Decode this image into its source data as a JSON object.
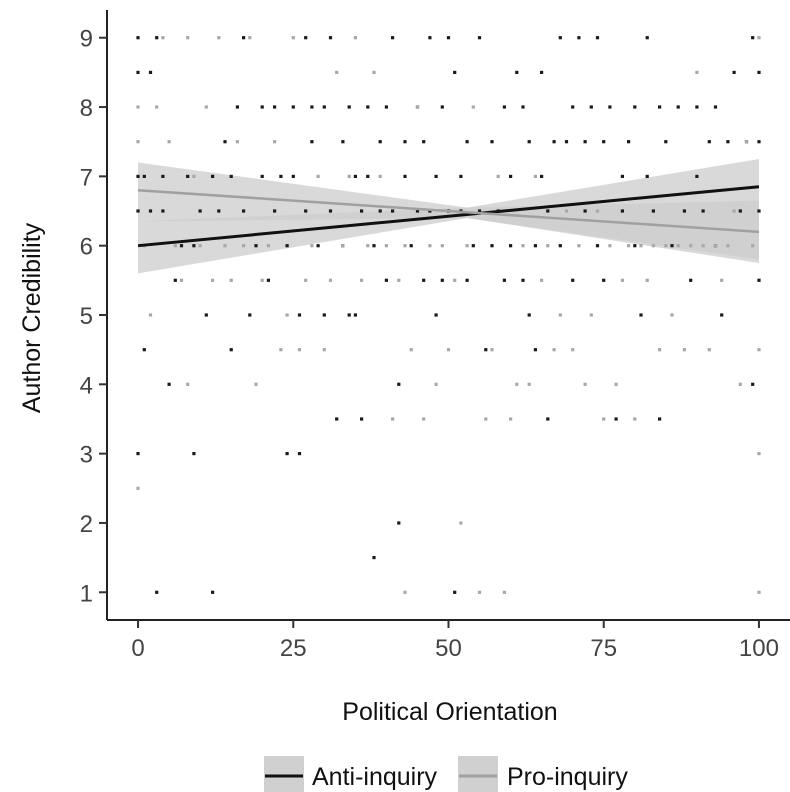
{
  "chart_data": {
    "type": "scatter",
    "title": "",
    "xlabel": "Political Orientation",
    "ylabel": "Author Credibility",
    "xlim": [
      -5,
      105
    ],
    "ylim": [
      0.6,
      9.4
    ],
    "x_ticks": [
      "0",
      "25",
      "50",
      "75",
      "100"
    ],
    "y_ticks": [
      "1",
      "2",
      "3",
      "4",
      "5",
      "6",
      "7",
      "8",
      "9"
    ],
    "grid": false,
    "legend_position": "bottom",
    "legend": [
      "Anti-inquiry",
      "Pro-inquiry"
    ],
    "colors": {
      "anti_points": "#1a1a1a",
      "pro_points": "#a8a8a8",
      "anti_line": "#111111",
      "pro_line": "#a0a0a0",
      "ribbon": "#cccccc",
      "legend_key_bg": "#d0d0d0"
    },
    "series": [
      {
        "name": "Anti-inquiry",
        "fit": {
          "x": [
            0,
            100
          ],
          "y": [
            6.0,
            6.85
          ]
        },
        "band": {
          "x": [
            0,
            53,
            100
          ],
          "lower": [
            5.6,
            6.4,
            5.75
          ],
          "upper": [
            6.35,
            6.55,
            7.25
          ]
        },
        "points": [
          [
            0,
            6.5
          ],
          [
            0,
            7
          ],
          [
            0,
            9
          ],
          [
            0,
            8.5
          ],
          [
            0,
            3
          ],
          [
            1,
            4.5
          ],
          [
            1,
            7
          ],
          [
            2,
            6.5
          ],
          [
            2,
            8.5
          ],
          [
            3,
            1
          ],
          [
            3,
            9
          ],
          [
            4,
            7
          ],
          [
            4,
            6.5
          ],
          [
            5,
            4
          ],
          [
            6,
            5.5
          ],
          [
            7,
            6
          ],
          [
            8,
            7
          ],
          [
            9,
            3
          ],
          [
            9,
            6
          ],
          [
            10,
            6.5
          ],
          [
            11,
            5
          ],
          [
            12,
            1
          ],
          [
            12,
            7
          ],
          [
            13,
            6.5
          ],
          [
            14,
            7.5
          ],
          [
            15,
            4.5
          ],
          [
            15,
            7
          ],
          [
            16,
            8
          ],
          [
            17,
            6.5
          ],
          [
            17,
            9
          ],
          [
            18,
            5
          ],
          [
            19,
            6
          ],
          [
            20,
            7
          ],
          [
            20,
            8
          ],
          [
            21,
            5.5
          ],
          [
            22,
            6.5
          ],
          [
            22,
            8
          ],
          [
            23,
            7
          ],
          [
            24,
            6
          ],
          [
            24,
            3
          ],
          [
            25,
            7
          ],
          [
            25,
            8
          ],
          [
            26,
            5
          ],
          [
            26,
            3
          ],
          [
            27,
            6.5
          ],
          [
            27,
            9
          ],
          [
            28,
            7.5
          ],
          [
            28,
            8
          ],
          [
            29,
            6
          ],
          [
            30,
            8
          ],
          [
            30,
            5
          ],
          [
            31,
            6.5
          ],
          [
            31,
            9
          ],
          [
            32,
            3.5
          ],
          [
            33,
            6
          ],
          [
            33,
            7.5
          ],
          [
            34,
            5
          ],
          [
            34,
            8
          ],
          [
            35,
            7
          ],
          [
            35,
            5
          ],
          [
            36,
            6.5
          ],
          [
            36,
            3.5
          ],
          [
            37,
            7
          ],
          [
            37,
            8
          ],
          [
            38,
            1.5
          ],
          [
            38,
            6
          ],
          [
            39,
            7.5
          ],
          [
            39,
            6.5
          ],
          [
            40,
            5.5
          ],
          [
            40,
            8
          ],
          [
            41,
            6.5
          ],
          [
            41,
            9
          ],
          [
            42,
            2
          ],
          [
            42,
            4
          ],
          [
            43,
            7
          ],
          [
            43,
            7.5
          ],
          [
            44,
            6
          ],
          [
            45,
            6.5
          ],
          [
            45,
            8
          ],
          [
            46,
            5.5
          ],
          [
            46,
            7.5
          ],
          [
            47,
            6.5
          ],
          [
            47,
            9
          ],
          [
            48,
            7
          ],
          [
            48,
            5
          ],
          [
            49,
            8
          ],
          [
            49,
            5.5
          ],
          [
            50,
            6.5
          ],
          [
            50,
            9
          ],
          [
            51,
            1
          ],
          [
            51,
            8.5
          ],
          [
            52,
            6.5
          ],
          [
            52,
            7
          ],
          [
            53,
            5.5
          ],
          [
            53,
            7.5
          ],
          [
            54,
            6
          ],
          [
            55,
            6.5
          ],
          [
            55,
            9
          ],
          [
            56,
            4.5
          ],
          [
            57,
            7.5
          ],
          [
            57,
            6
          ],
          [
            58,
            6.5
          ],
          [
            59,
            8
          ],
          [
            59,
            5.5
          ],
          [
            60,
            7
          ],
          [
            60,
            6
          ],
          [
            61,
            8.5
          ],
          [
            62,
            5.5
          ],
          [
            62,
            8
          ],
          [
            63,
            7.5
          ],
          [
            63,
            5
          ],
          [
            64,
            6
          ],
          [
            64,
            4.5
          ],
          [
            65,
            7
          ],
          [
            65,
            8.5
          ],
          [
            66,
            3.5
          ],
          [
            66,
            6.5
          ],
          [
            67,
            7.5
          ],
          [
            68,
            9
          ],
          [
            68,
            6
          ],
          [
            69,
            7.5
          ],
          [
            70,
            5.5
          ],
          [
            70,
            8
          ],
          [
            71,
            9
          ],
          [
            72,
            6.5
          ],
          [
            72,
            7.5
          ],
          [
            73,
            8
          ],
          [
            74,
            6
          ],
          [
            74,
            9
          ],
          [
            75,
            7.5
          ],
          [
            75,
            5.5
          ],
          [
            76,
            8
          ],
          [
            77,
            3.5
          ],
          [
            78,
            6.5
          ],
          [
            78,
            7
          ],
          [
            79,
            7.5
          ],
          [
            80,
            8
          ],
          [
            80,
            6
          ],
          [
            81,
            5
          ],
          [
            82,
            7
          ],
          [
            82,
            9
          ],
          [
            83,
            6.5
          ],
          [
            84,
            3.5
          ],
          [
            84,
            8
          ],
          [
            85,
            7.5
          ],
          [
            86,
            6
          ],
          [
            87,
            8
          ],
          [
            88,
            6.5
          ],
          [
            89,
            5.5
          ],
          [
            90,
            7
          ],
          [
            90,
            8
          ],
          [
            91,
            6.5
          ],
          [
            92,
            7.5
          ],
          [
            93,
            8
          ],
          [
            93,
            6
          ],
          [
            94,
            5
          ],
          [
            95,
            7.5
          ],
          [
            96,
            8.5
          ],
          [
            97,
            6.5
          ],
          [
            98,
            7.5
          ],
          [
            99,
            4
          ],
          [
            99,
            9
          ],
          [
            100,
            5.5
          ],
          [
            100,
            6.5
          ],
          [
            100,
            7.5
          ],
          [
            100,
            8.5
          ]
        ]
      },
      {
        "name": "Pro-inquiry",
        "fit": {
          "x": [
            0,
            100
          ],
          "y": [
            6.8,
            6.2
          ]
        },
        "band": {
          "x": [
            0,
            53,
            100
          ],
          "lower": [
            6.35,
            6.4,
            5.8
          ],
          "upper": [
            7.2,
            6.55,
            6.65
          ]
        },
        "points": [
          [
            0,
            2.5
          ],
          [
            0,
            8
          ],
          [
            0,
            7.5
          ],
          [
            1,
            6
          ],
          [
            2,
            5
          ],
          [
            3,
            8
          ],
          [
            4,
            9
          ],
          [
            5,
            7.5
          ],
          [
            6,
            6
          ],
          [
            7,
            5.5
          ],
          [
            8,
            9
          ],
          [
            8,
            4
          ],
          [
            9,
            7
          ],
          [
            10,
            6
          ],
          [
            11,
            8
          ],
          [
            12,
            5.5
          ],
          [
            13,
            9
          ],
          [
            14,
            6
          ],
          [
            15,
            5.5
          ],
          [
            16,
            7.5
          ],
          [
            17,
            6
          ],
          [
            18,
            9
          ],
          [
            19,
            4
          ],
          [
            20,
            5.5
          ],
          [
            21,
            6
          ],
          [
            22,
            7.5
          ],
          [
            23,
            4.5
          ],
          [
            24,
            5
          ],
          [
            25,
            9
          ],
          [
            26,
            4.5
          ],
          [
            27,
            5.5
          ],
          [
            28,
            6
          ],
          [
            29,
            7
          ],
          [
            30,
            4.5
          ],
          [
            31,
            5.5
          ],
          [
            32,
            8.5
          ],
          [
            33,
            6
          ],
          [
            34,
            7
          ],
          [
            35,
            9
          ],
          [
            36,
            5.5
          ],
          [
            37,
            6
          ],
          [
            38,
            8.5
          ],
          [
            39,
            7
          ],
          [
            40,
            6
          ],
          [
            41,
            3.5
          ],
          [
            42,
            5.5
          ],
          [
            43,
            1
          ],
          [
            43,
            6
          ],
          [
            44,
            4.5
          ],
          [
            45,
            8
          ],
          [
            46,
            3.5
          ],
          [
            47,
            6
          ],
          [
            48,
            4
          ],
          [
            49,
            6
          ],
          [
            50,
            4.5
          ],
          [
            51,
            5.5
          ],
          [
            52,
            2
          ],
          [
            53,
            6
          ],
          [
            54,
            8
          ],
          [
            55,
            1
          ],
          [
            56,
            3.5
          ],
          [
            57,
            4.5
          ],
          [
            58,
            7
          ],
          [
            59,
            1
          ],
          [
            60,
            3.5
          ],
          [
            61,
            4
          ],
          [
            62,
            6
          ],
          [
            63,
            4
          ],
          [
            64,
            7
          ],
          [
            65,
            5.5
          ],
          [
            66,
            6
          ],
          [
            67,
            4.5
          ],
          [
            68,
            5
          ],
          [
            69,
            6.5
          ],
          [
            70,
            4.5
          ],
          [
            71,
            6
          ],
          [
            72,
            4
          ],
          [
            73,
            5
          ],
          [
            74,
            6.5
          ],
          [
            75,
            3.5
          ],
          [
            76,
            6
          ],
          [
            77,
            4
          ],
          [
            78,
            5.5
          ],
          [
            79,
            6
          ],
          [
            80,
            3.5
          ],
          [
            81,
            6
          ],
          [
            82,
            5.5
          ],
          [
            83,
            6
          ],
          [
            84,
            4.5
          ],
          [
            85,
            6
          ],
          [
            86,
            5
          ],
          [
            87,
            6
          ],
          [
            88,
            4.5
          ],
          [
            89,
            6
          ],
          [
            90,
            8.5
          ],
          [
            91,
            6
          ],
          [
            92,
            4.5
          ],
          [
            93,
            6
          ],
          [
            94,
            5.5
          ],
          [
            95,
            6
          ],
          [
            96,
            6.5
          ],
          [
            97,
            4
          ],
          [
            98,
            7.5
          ],
          [
            99,
            6
          ],
          [
            100,
            1
          ],
          [
            100,
            3
          ],
          [
            100,
            4.5
          ],
          [
            100,
            9
          ]
        ]
      }
    ]
  }
}
